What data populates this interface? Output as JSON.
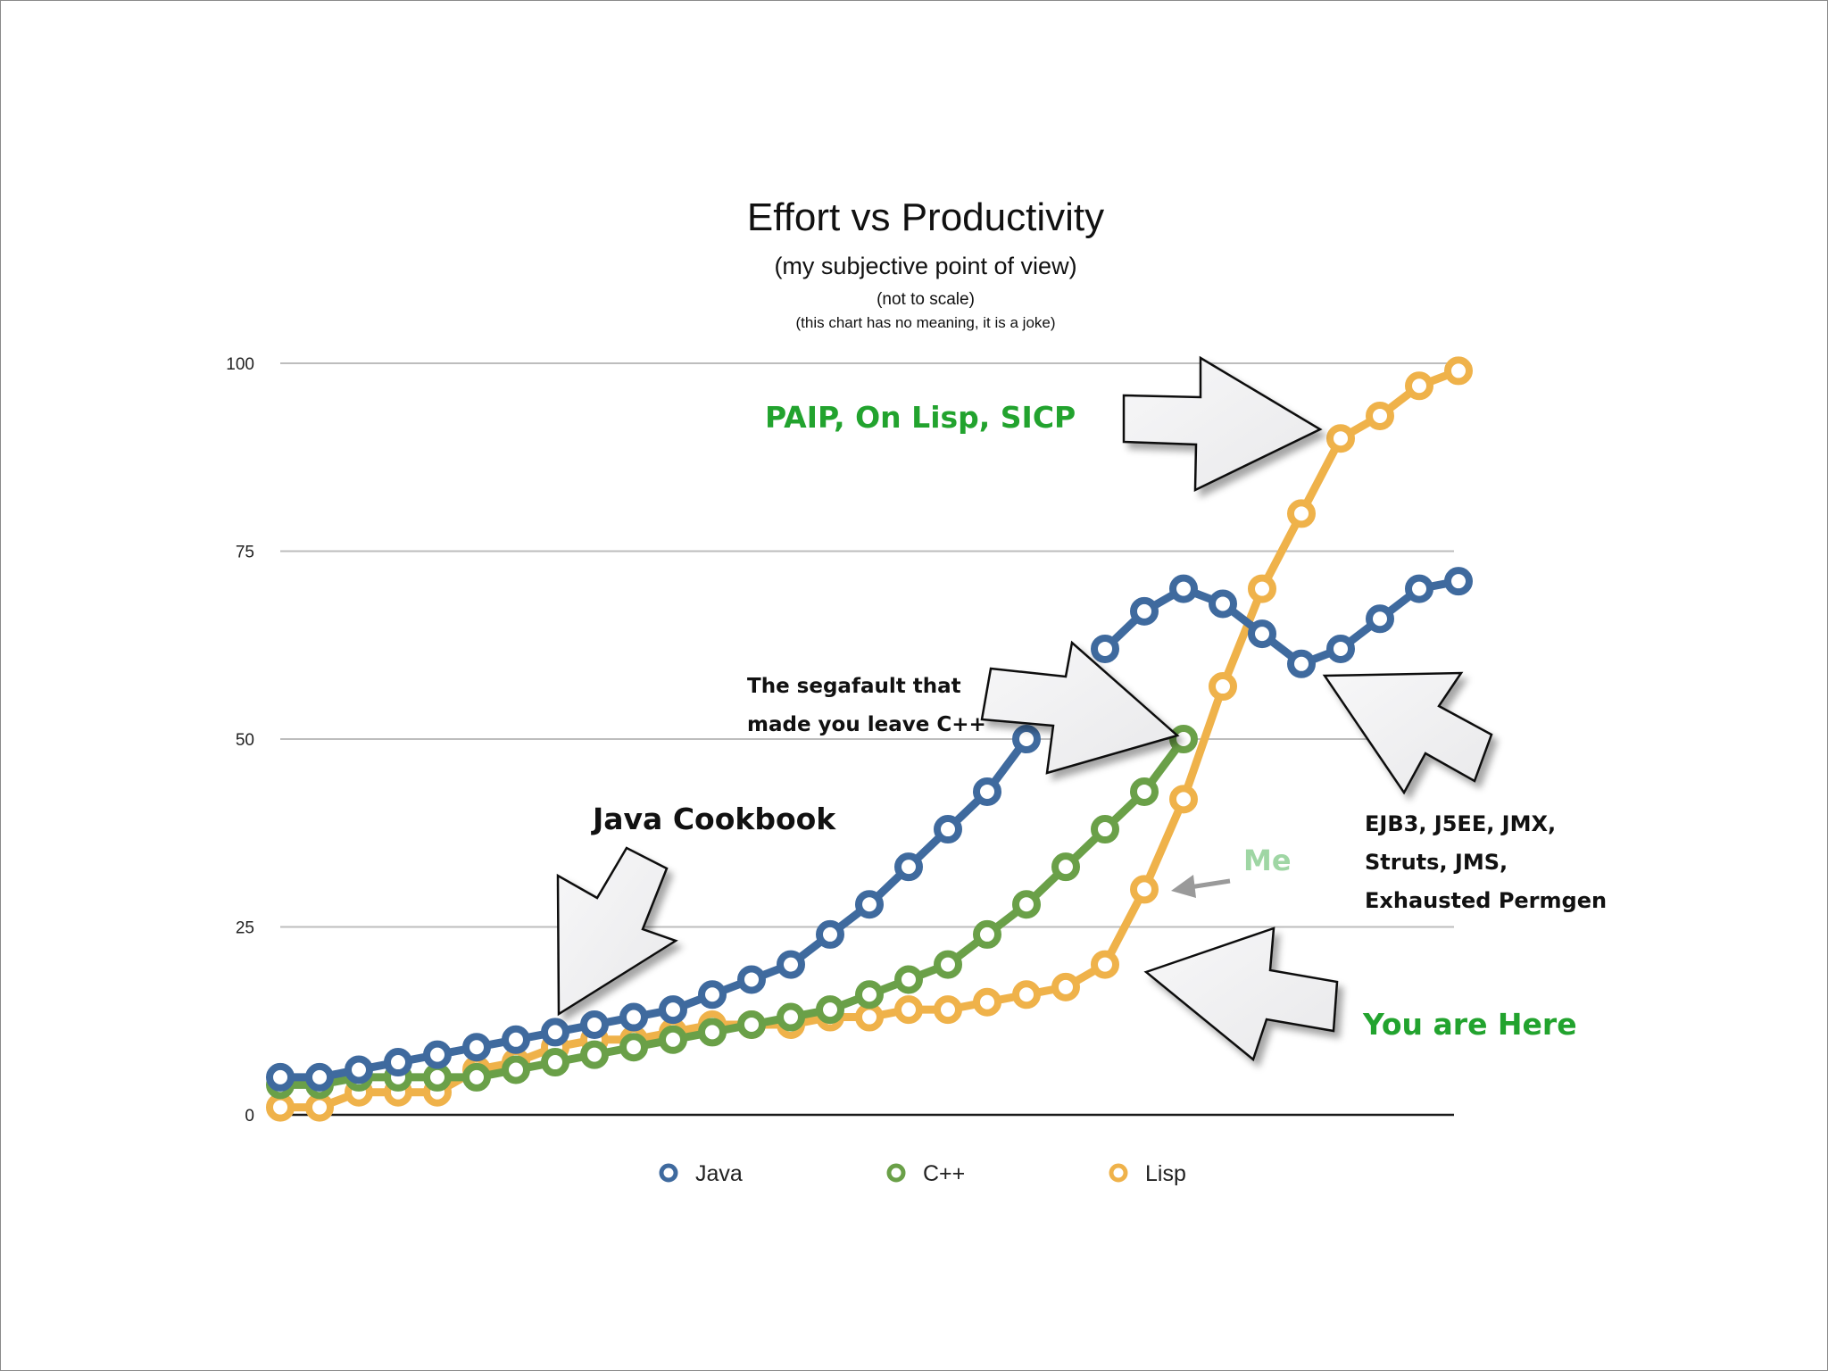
{
  "chart_data": {
    "type": "line",
    "title": "Effort vs Productivity",
    "subtitle": "(my subjective point of view)",
    "notes": [
      "(not to scale)",
      "(this chart has no meaning, it is a joke)"
    ],
    "xlabel": "",
    "ylabel": "",
    "ylim": [
      0,
      100
    ],
    "yticks": [
      "0",
      "25",
      "50",
      "75",
      "100"
    ],
    "grid": true,
    "legend_position": "bottom",
    "series": [
      {
        "name": "Java",
        "color": "#3f6a9e",
        "x": [
          0,
          1,
          2,
          3,
          4,
          5,
          6,
          7,
          8,
          9,
          10,
          11,
          12,
          13,
          14,
          15,
          16,
          17,
          18,
          19,
          20,
          21,
          22,
          23,
          24,
          25,
          26,
          27,
          28,
          29,
          30
        ],
        "values": [
          5,
          5,
          6,
          7,
          8,
          9,
          10,
          11,
          12,
          13,
          14,
          16,
          18,
          20,
          24,
          28,
          33,
          38,
          43,
          50,
          null,
          62,
          67,
          70,
          68,
          64,
          60,
          62,
          66,
          70,
          71
        ]
      },
      {
        "name": "C++",
        "color": "#6aa048",
        "x": [
          0,
          1,
          2,
          3,
          4,
          5,
          6,
          7,
          8,
          9,
          10,
          11,
          12,
          13,
          14,
          15,
          16,
          17,
          18,
          19,
          20,
          21,
          22,
          23
        ],
        "values": [
          4,
          4,
          5,
          5,
          5,
          5,
          6,
          7,
          8,
          9,
          10,
          11,
          12,
          13,
          14,
          16,
          18,
          20,
          24,
          28,
          33,
          38,
          43,
          50
        ]
      },
      {
        "name": "Lisp",
        "color": "#efb24a",
        "x": [
          0,
          1,
          2,
          3,
          4,
          5,
          6,
          7,
          8,
          9,
          10,
          11,
          12,
          13,
          14,
          15,
          16,
          17,
          18,
          19,
          20,
          21,
          22,
          23,
          24,
          25,
          26,
          27,
          28,
          29,
          30
        ],
        "values": [
          1,
          1,
          3,
          3,
          3,
          6,
          7,
          9,
          10,
          10,
          11,
          12,
          12,
          12,
          13,
          13,
          14,
          14,
          15,
          16,
          17,
          20,
          30,
          42,
          57,
          70,
          80,
          90,
          93,
          97,
          99
        ]
      }
    ],
    "annotations": [
      {
        "text": "PAIP, On Lisp, SICP",
        "color": "#22a32e"
      },
      {
        "text": "The segafault that",
        "color": "#111111"
      },
      {
        "text": "made you leave C++",
        "color": "#111111"
      },
      {
        "text": "Java Cookbook",
        "color": "#111111"
      },
      {
        "text": "Me",
        "color": "#9fd6a4"
      },
      {
        "text": "EJB3, J5EE, JMX,",
        "color": "#111111"
      },
      {
        "text": "Struts, JMS,",
        "color": "#111111"
      },
      {
        "text": "Exhausted Permgen",
        "color": "#111111"
      },
      {
        "text": "You are Here",
        "color": "#22a32e"
      }
    ]
  }
}
